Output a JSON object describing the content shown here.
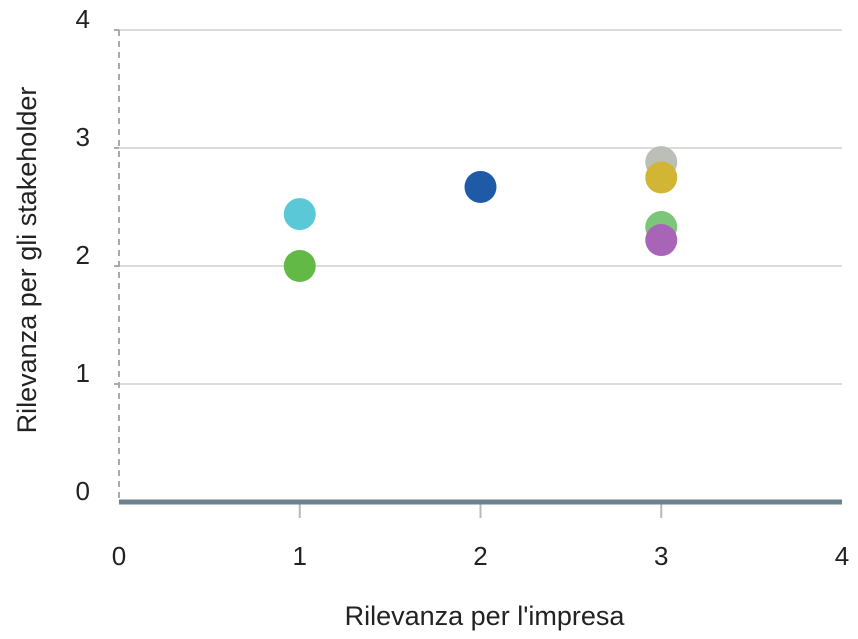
{
  "chart_data": {
    "type": "scatter",
    "xlabel": "Rilevanza per l'impresa",
    "ylabel": "Rilevanza per gli stakeholder",
    "xlim": [
      0,
      4
    ],
    "ylim": [
      0,
      4
    ],
    "x_ticks": [
      "0",
      "1",
      "2",
      "3",
      "4"
    ],
    "y_ticks": [
      "0",
      "1",
      "2",
      "3",
      "4"
    ],
    "grid": "horizontal",
    "legend": "none",
    "points": [
      {
        "x": 1,
        "y": 2.44,
        "color": "#5bc8d8"
      },
      {
        "x": 1,
        "y": 2.0,
        "color": "#62b946"
      },
      {
        "x": 2,
        "y": 2.67,
        "color": "#1f5aa6"
      },
      {
        "x": 3,
        "y": 2.88,
        "color": "#bcbfb8"
      },
      {
        "x": 3,
        "y": 2.75,
        "color": "#d2b534"
      },
      {
        "x": 3,
        "y": 2.33,
        "color": "#7cc57a"
      },
      {
        "x": 3,
        "y": 2.22,
        "color": "#a865b7"
      }
    ],
    "colors": {
      "grid": "#dcdcdc",
      "x_axis": "#6b8391",
      "y_axis": "#aaaaaa",
      "text": "#222222"
    }
  }
}
